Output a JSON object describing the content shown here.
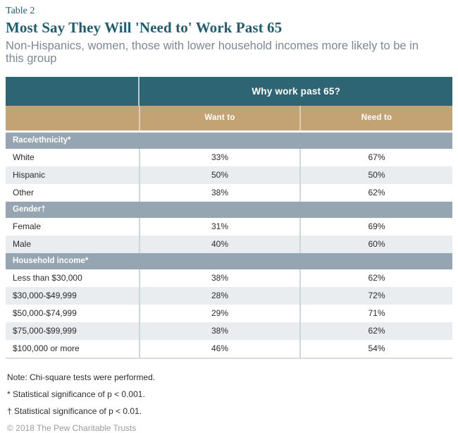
{
  "chart_data": {
    "type": "table",
    "table_label": "Table 2",
    "title": "Most Say They Will 'Need to' Work Past 65",
    "subtitle": "Non-Hispanics, women, those with lower household incomes more likely to be in this group",
    "span_header": "Why work past 65?",
    "columns": [
      "Want to",
      "Need to"
    ],
    "sections": [
      {
        "label": "Race/ethnicity*",
        "rows": [
          {
            "label": "White",
            "want": "33%",
            "need": "67%"
          },
          {
            "label": "Hispanic",
            "want": "50%",
            "need": "50%"
          },
          {
            "label": "Other",
            "want": "38%",
            "need": "62%"
          }
        ]
      },
      {
        "label": "Gender†",
        "rows": [
          {
            "label": "Female",
            "want": "31%",
            "need": "69%"
          },
          {
            "label": "Male",
            "want": "40%",
            "need": "60%"
          }
        ]
      },
      {
        "label": "Household income*",
        "rows": [
          {
            "label": "Less than $30,000",
            "want": "38%",
            "need": "62%"
          },
          {
            "label": "$30,000-$49,999",
            "want": "28%",
            "need": "72%"
          },
          {
            "label": "$50,000-$74,999",
            "want": "29%",
            "need": "71%"
          },
          {
            "label": "$75,000-$99,999",
            "want": "38%",
            "need": "62%"
          },
          {
            "label": "$100,000 or more",
            "want": "46%",
            "need": "54%"
          }
        ]
      }
    ]
  },
  "footnotes": [
    "Note: Chi-square tests were performed.",
    "* Statistical significance of p < 0.001.",
    "† Statistical significance of p < 0.01."
  ],
  "copyright": "© 2018 The Pew Charitable Trusts",
  "colors": {
    "header_teal": "#2d6575",
    "header_tan": "#c3a273",
    "section_gray": "#95a6b2",
    "alt_row": "#e9edf0",
    "divider": "#ccd6dd",
    "title_text": "#1f5d6f",
    "subtitle_text": "#7b8896"
  }
}
